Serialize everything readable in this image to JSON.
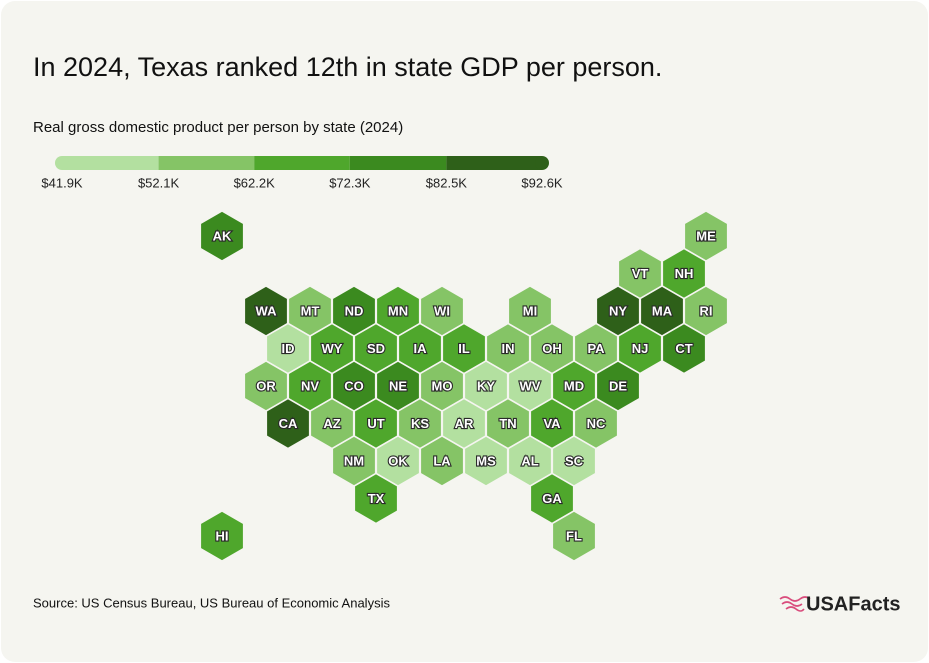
{
  "chart_data": {
    "type": "hexmap",
    "title": "In 2024, Texas ranked 12th in state GDP per person.",
    "subtitle": "Real gross domestic product per person by state (2024)",
    "source": "Source: US Census Bureau, US Bureau of Economic Analysis",
    "logo": "USAFacts",
    "legend_ticks": [
      {
        "value": 41.9,
        "label": "$41.9K"
      },
      {
        "value": 52.1,
        "label": "$52.1K"
      },
      {
        "value": 62.2,
        "label": "$62.2K"
      },
      {
        "value": 72.3,
        "label": "$72.3K"
      },
      {
        "value": 82.5,
        "label": "$82.5K"
      },
      {
        "value": 92.6,
        "label": "$92.6K"
      }
    ],
    "colors": [
      "#b3e0a0",
      "#85c466",
      "#4fa72c",
      "#3b8a1f",
      "#2e6019"
    ],
    "categories": [
      "AK",
      "ME",
      "VT",
      "NH",
      "WA",
      "MT",
      "ND",
      "MN",
      "WI",
      "MI",
      "NY",
      "MA",
      "RI",
      "ID",
      "WY",
      "SD",
      "IA",
      "IL",
      "IN",
      "OH",
      "PA",
      "NJ",
      "CT",
      "OR",
      "NV",
      "CO",
      "NE",
      "MO",
      "KY",
      "WV",
      "MD",
      "DE",
      "CA",
      "AZ",
      "UT",
      "KS",
      "AR",
      "TN",
      "VA",
      "NC",
      "NM",
      "OK",
      "LA",
      "MS",
      "AL",
      "SC",
      "TX",
      "GA",
      "HI",
      "FL"
    ],
    "values": [
      77.4,
      57.2,
      57.2,
      67.3,
      87.6,
      57.2,
      77.4,
      67.3,
      57.2,
      57.2,
      87.6,
      87.6,
      57.2,
      47.0,
      67.3,
      67.3,
      67.3,
      67.3,
      57.2,
      57.2,
      57.2,
      67.3,
      77.4,
      57.2,
      67.3,
      77.4,
      77.4,
      57.2,
      47.0,
      47.0,
      67.3,
      77.4,
      87.6,
      57.2,
      67.3,
      57.2,
      47.0,
      57.2,
      67.3,
      57.2,
      57.2,
      47.0,
      57.2,
      47.0,
      47.0,
      47.0,
      67.3,
      67.3,
      67.3,
      57.2
    ]
  }
}
